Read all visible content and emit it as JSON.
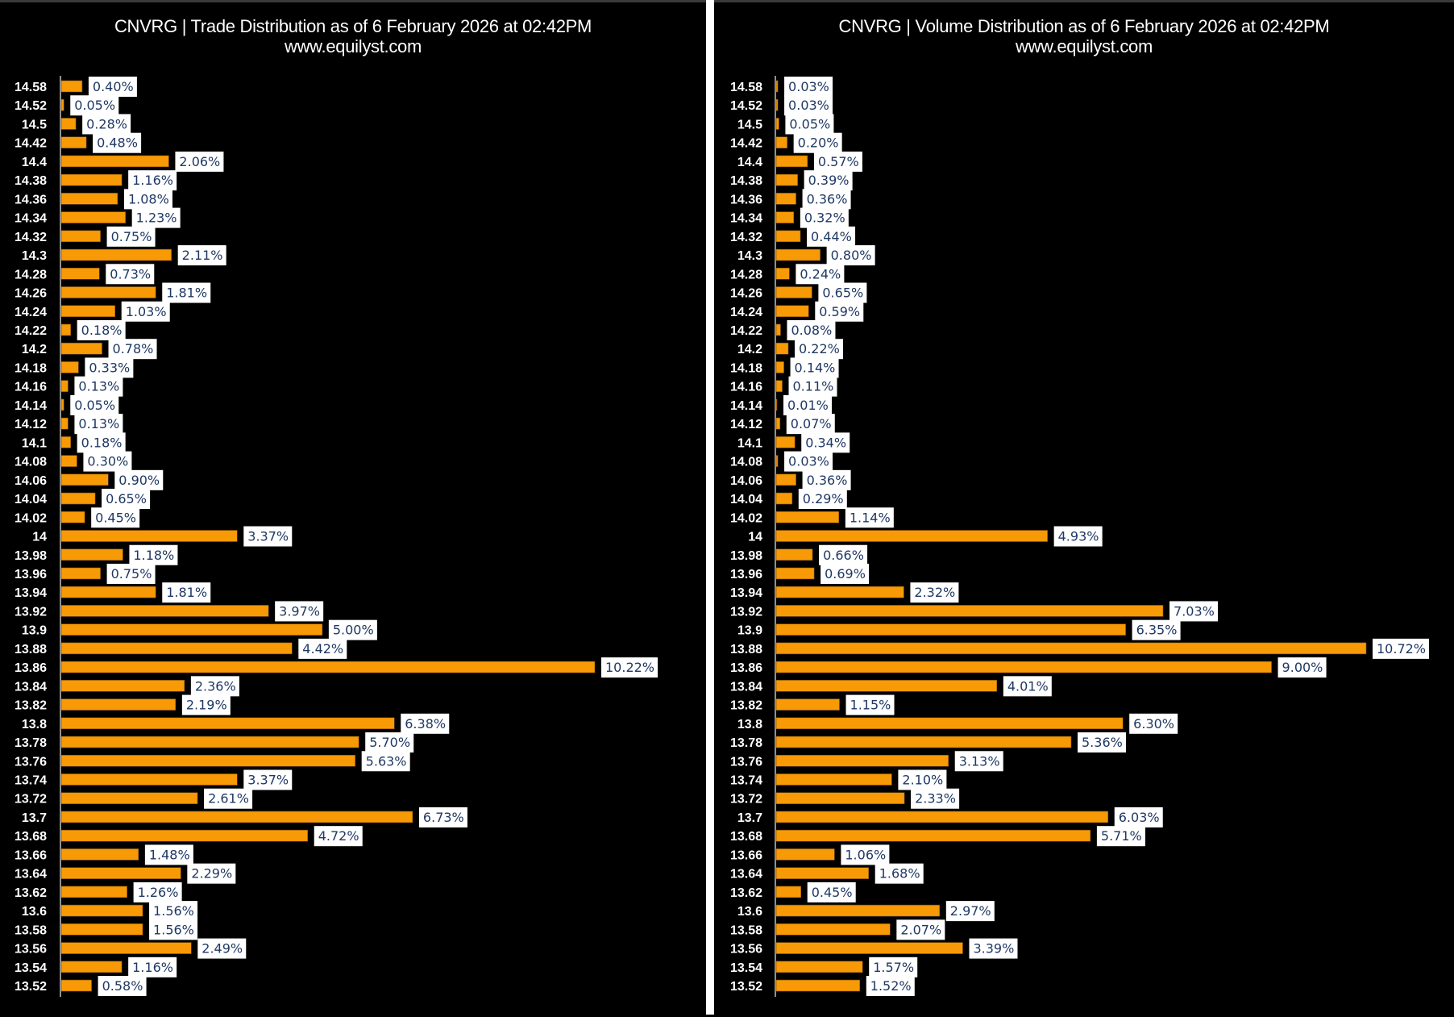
{
  "chart_data": [
    {
      "type": "bar",
      "orientation": "horizontal",
      "title": "CNVRG | Trade Distribution as of 6 February 2026 at 02:42PM",
      "subtitle": "www.equilyst.com",
      "xlabel": "",
      "ylabel": "",
      "value_format": "percent",
      "grid": false,
      "legend": "none",
      "bar_color": "#F79A06",
      "label_box_color": "#FFFFFF",
      "label_text_color": "#1F3864",
      "categories": [
        "14.58",
        "14.52",
        "14.5",
        "14.42",
        "14.4",
        "14.38",
        "14.36",
        "14.34",
        "14.32",
        "14.3",
        "14.28",
        "14.26",
        "14.24",
        "14.22",
        "14.2",
        "14.18",
        "14.16",
        "14.14",
        "14.12",
        "14.1",
        "14.08",
        "14.06",
        "14.04",
        "14.02",
        "14",
        "13.98",
        "13.96",
        "13.94",
        "13.92",
        "13.9",
        "13.88",
        "13.86",
        "13.84",
        "13.82",
        "13.8",
        "13.78",
        "13.76",
        "13.74",
        "13.72",
        "13.7",
        "13.68",
        "13.66",
        "13.64",
        "13.62",
        "13.6",
        "13.58",
        "13.56",
        "13.54",
        "13.52"
      ],
      "values": [
        0.4,
        0.05,
        0.28,
        0.48,
        2.06,
        1.16,
        1.08,
        1.23,
        0.75,
        2.11,
        0.73,
        1.81,
        1.03,
        0.18,
        0.78,
        0.33,
        0.13,
        0.05,
        0.13,
        0.18,
        0.3,
        0.9,
        0.65,
        0.45,
        3.37,
        1.18,
        0.75,
        1.81,
        3.97,
        5.0,
        4.42,
        10.22,
        2.36,
        2.19,
        6.38,
        5.7,
        5.63,
        3.37,
        2.61,
        6.73,
        4.72,
        1.48,
        2.29,
        1.26,
        1.56,
        1.56,
        2.49,
        1.16,
        0.58
      ],
      "labels": [
        "0.40%",
        "0.05%",
        "0.28%",
        "0.48%",
        "2.06%",
        "1.16%",
        "1.08%",
        "1.23%",
        "0.75%",
        "2.11%",
        "0.73%",
        "1.81%",
        "1.03%",
        "0.18%",
        "0.78%",
        "0.33%",
        "0.13%",
        "0.05%",
        "0.13%",
        "0.18%",
        "0.30%",
        "0.90%",
        "0.65%",
        "0.45%",
        "3.37%",
        "1.18%",
        "0.75%",
        "1.81%",
        "3.97%",
        "5.00%",
        "4.42%",
        "10.22%",
        "2.36%",
        "2.19%",
        "6.38%",
        "5.70%",
        "5.63%",
        "3.37%",
        "2.61%",
        "6.73%",
        "4.72%",
        "1.48%",
        "2.29%",
        "1.26%",
        "1.56%",
        "1.56%",
        "2.49%",
        "1.16%",
        "0.58%"
      ],
      "xlim": [
        0,
        10.22
      ]
    },
    {
      "type": "bar",
      "orientation": "horizontal",
      "title": "CNVRG | Volume Distribution as of 6 February 2026 at 02:42PM",
      "subtitle": "www.equilyst.com",
      "xlabel": "",
      "ylabel": "",
      "value_format": "percent",
      "grid": false,
      "legend": "none",
      "bar_color": "#F79A06",
      "label_box_color": "#FFFFFF",
      "label_text_color": "#1F3864",
      "categories": [
        "14.58",
        "14.52",
        "14.5",
        "14.42",
        "14.4",
        "14.38",
        "14.36",
        "14.34",
        "14.32",
        "14.3",
        "14.28",
        "14.26",
        "14.24",
        "14.22",
        "14.2",
        "14.18",
        "14.16",
        "14.14",
        "14.12",
        "14.1",
        "14.08",
        "14.06",
        "14.04",
        "14.02",
        "14",
        "13.98",
        "13.96",
        "13.94",
        "13.92",
        "13.9",
        "13.88",
        "13.86",
        "13.84",
        "13.82",
        "13.8",
        "13.78",
        "13.76",
        "13.74",
        "13.72",
        "13.7",
        "13.68",
        "13.66",
        "13.64",
        "13.62",
        "13.6",
        "13.58",
        "13.56",
        "13.54",
        "13.52"
      ],
      "values": [
        0.03,
        0.03,
        0.05,
        0.2,
        0.57,
        0.39,
        0.36,
        0.32,
        0.44,
        0.8,
        0.24,
        0.65,
        0.59,
        0.08,
        0.22,
        0.14,
        0.11,
        0.01,
        0.07,
        0.34,
        0.03,
        0.36,
        0.29,
        1.14,
        4.93,
        0.66,
        0.69,
        2.32,
        7.03,
        6.35,
        10.72,
        9.0,
        4.01,
        1.15,
        6.3,
        5.36,
        3.13,
        2.1,
        2.33,
        6.03,
        5.71,
        1.06,
        1.68,
        0.45,
        2.97,
        2.07,
        3.39,
        1.57,
        1.52
      ],
      "labels": [
        "0.03%",
        "0.03%",
        "0.05%",
        "0.20%",
        "0.57%",
        "0.39%",
        "0.36%",
        "0.32%",
        "0.44%",
        "0.80%",
        "0.24%",
        "0.65%",
        "0.59%",
        "0.08%",
        "0.22%",
        "0.14%",
        "0.11%",
        "0.01%",
        "0.07%",
        "0.34%",
        "0.03%",
        "0.36%",
        "0.29%",
        "1.14%",
        "4.93%",
        "0.66%",
        "0.69%",
        "2.32%",
        "7.03%",
        "6.35%",
        "10.72%",
        "9.00%",
        "4.01%",
        "1.15%",
        "6.30%",
        "5.36%",
        "3.13%",
        "2.10%",
        "2.33%",
        "6.03%",
        "5.71%",
        "1.06%",
        "1.68%",
        "0.45%",
        "2.97%",
        "2.07%",
        "3.39%",
        "1.57%",
        "1.52%"
      ],
      "xlim": [
        0,
        10.72
      ]
    }
  ]
}
